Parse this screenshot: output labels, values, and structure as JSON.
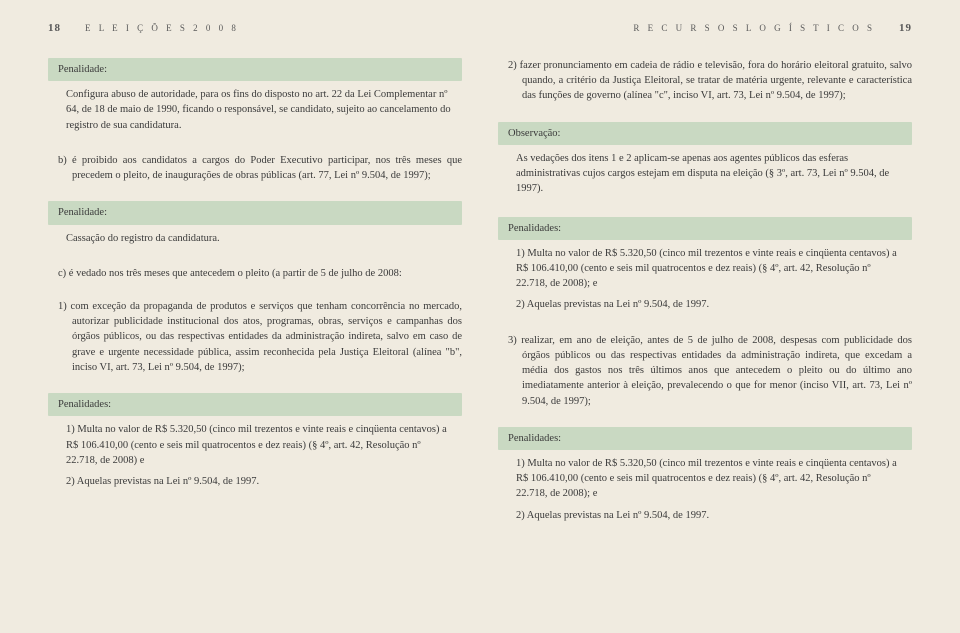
{
  "header": {
    "left_pagenum": "18",
    "left_title": "E L E I Ç Õ E S   2 0 0 8",
    "right_title": "R E C U R S O S   L O G Í S T I C O S",
    "right_pagenum": "19"
  },
  "left_col": {
    "label1": "Penalidade:",
    "body1": "Configura abuso de autoridade, para os fins do disposto no art. 22 da Lei Complementar nº 64, de 18 de maio de 1990, ficando o responsável, se candidato, sujeito ao cancelamento do registro de sua candidatura.",
    "item_b": "b) é proibido aos candidatos a cargos do Poder Executivo participar, nos três meses que precedem o pleito, de inaugurações de obras públicas (art. 77, Lei nº 9.504, de 1997);",
    "label2": "Penalidade:",
    "body2": "Cassação do registro da candidatura.",
    "item_c": "c) é vedado nos três meses que antecedem o pleito (a partir de 5 de julho de 2008:",
    "item_1": "1) com exceção da propaganda de produtos e serviços que tenham concorrência no mercado, autorizar publicidade institucional dos atos, programas, obras, serviços e campanhas dos órgãos públicos, ou das respectivas entidades da administração indireta, salvo em caso de grave e urgente necessidade pública, assim reconhecida pela Justiça Eleitoral (alínea \"b\", inciso VI, art. 73, Lei nº 9.504, de 1997);",
    "label3": "Penalidades:",
    "body3a": "1) Multa no valor de R$ 5.320,50 (cinco mil trezentos e vinte reais e cinqüenta centavos) a R$ 106.410,00 (cento e seis mil quatrocentos e dez reais) (§ 4º, art. 42, Resolução nº 22.718, de 2008) e",
    "body3b": "2) Aquelas previstas na Lei nº 9.504, de 1997."
  },
  "right_col": {
    "item_2": "2) fazer pronunciamento em cadeia de rádio e televisão, fora do horário eleitoral gratuito, salvo quando, a critério da Justiça Eleitoral, se tratar de matéria urgente, relevante e característica das funções de governo (alínea \"c\", inciso VI, art. 73, Lei nº 9.504, de 1997);",
    "label_obs": "Observação:",
    "body_obs": "As vedações dos itens 1 e 2 aplicam-se apenas aos agentes públicos das esferas administrativas cujos cargos estejam em disputa na eleição (§ 3º, art. 73, Lei nº 9.504, de 1997).",
    "label_pen1": "Penalidades:",
    "pen1a": "1) Multa no valor de R$ 5.320,50 (cinco mil trezentos e vinte reais e cinqüenta centavos) a R$ 106.410,00 (cento e seis mil quatrocentos e dez reais) (§ 4º, art. 42, Resolução nº 22.718, de 2008); e",
    "pen1b": "2) Aquelas previstas na Lei nº 9.504, de 1997.",
    "item_3": "3) realizar, em ano de eleição, antes de 5 de julho de 2008, despesas com publicidade dos órgãos públicos ou das respectivas entidades da administração indireta, que excedam a média dos gastos nos três últimos anos que antecedem o pleito ou do último ano imediatamente anterior à eleição, prevalecendo o que for menor (inciso VII, art. 73, Lei nº 9.504, de 1997);",
    "label_pen2": "Penalidades:",
    "pen2a": "1) Multa no valor de R$ 5.320,50 (cinco mil trezentos e vinte reais e cinqüenta centavos) a R$ 106.410,00 (cento e seis mil quatrocentos e dez reais) (§ 4º, art. 42, Resolução nº 22.718, de 2008); e",
    "pen2b": "2) Aquelas previstas na Lei nº 9.504, de 1997."
  }
}
